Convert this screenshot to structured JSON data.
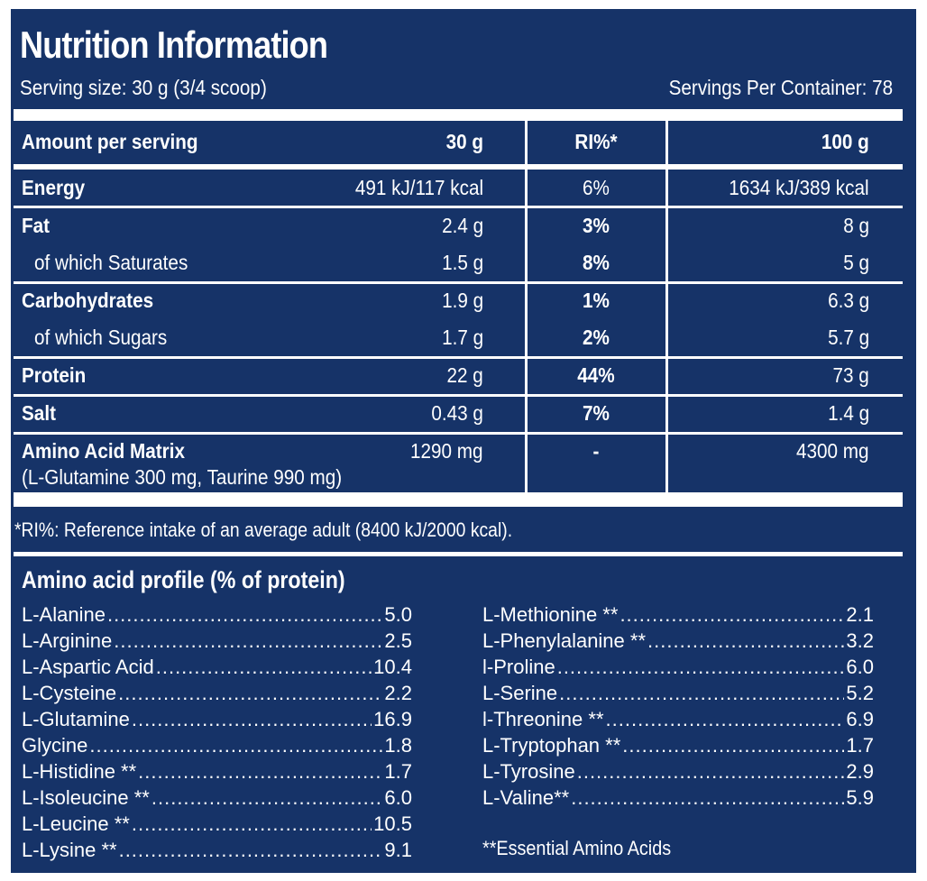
{
  "header": {
    "title": "Nutrition Information",
    "serving_size": "Serving size: 30 g (3/4 scoop)",
    "servings_per_container": "Servings Per Container:  78"
  },
  "table": {
    "columns": [
      "Amount per serving",
      "30 g",
      "RI%*",
      "100 g"
    ],
    "rows": [
      {
        "name": "Energy",
        "per_serving": "491 kJ/117 kcal",
        "ri": "6%",
        "per_100g": "1634 kJ/389 kcal"
      },
      {
        "name": "Fat",
        "per_serving": "2.4 g",
        "ri": "3%",
        "per_100g": "8 g"
      },
      {
        "name": "of which Saturates",
        "per_serving": "1.5 g",
        "ri": "8%",
        "per_100g": "5 g"
      },
      {
        "name": "Carbohydrates",
        "per_serving": "1.9 g",
        "ri": "1%",
        "per_100g": "6.3 g"
      },
      {
        "name": "of which Sugars",
        "per_serving": "1.7 g",
        "ri": "2%",
        "per_100g": "5.7 g"
      },
      {
        "name": "Protein",
        "per_serving": "22 g",
        "ri": "44%",
        "per_100g": "73 g"
      },
      {
        "name": "Salt",
        "per_serving": "0.43 g",
        "ri": "7%",
        "per_100g": "1.4 g"
      },
      {
        "name": "Amino Acid Matrix",
        "sub": "(L-Glutamine 300 mg, Taurine 990 mg)",
        "per_serving": "1290 mg",
        "ri": "-",
        "per_100g": "4300 mg"
      }
    ]
  },
  "ri_note": "*RI%: Reference intake of an average adult (8400 kJ/2000 kcal).",
  "amino_profile": {
    "title": "Amino acid profile (% of protein)",
    "left": [
      {
        "name": "L-Alanine",
        "value": "5.0"
      },
      {
        "name": "L-Arginine",
        "value": "2.5"
      },
      {
        "name": "L-Aspartic Acid",
        "value": "10.4"
      },
      {
        "name": "L-Cysteine",
        "value": "2.2"
      },
      {
        "name": "L-Glutamine",
        "value": "16.9"
      },
      {
        "name": "Glycine",
        "value": "1.8"
      },
      {
        "name": "L-Histidine **",
        "value": "1.7"
      },
      {
        "name": "L-Isoleucine **",
        "value": "6.0"
      },
      {
        "name": "L-Leucine **",
        "value": "10.5"
      },
      {
        "name": "L-Lysine **",
        "value": "9.1"
      }
    ],
    "right": [
      {
        "name": "L-Methionine **",
        "value": "2.1"
      },
      {
        "name": "L-Phenylalanine **",
        "value": "3.2"
      },
      {
        "name": "l-Proline",
        "value": "6.0"
      },
      {
        "name": "L-Serine",
        "value": "5.2"
      },
      {
        "name": "l-Threonine **",
        "value": "6.9"
      },
      {
        "name": "L-Tryptophan **",
        "value": "1.7"
      },
      {
        "name": "L-Tyrosine",
        "value": "2.9"
      },
      {
        "name": "L-Valine**",
        "value": "5.9"
      }
    ],
    "footnote": "**Essential Amino Acids"
  }
}
